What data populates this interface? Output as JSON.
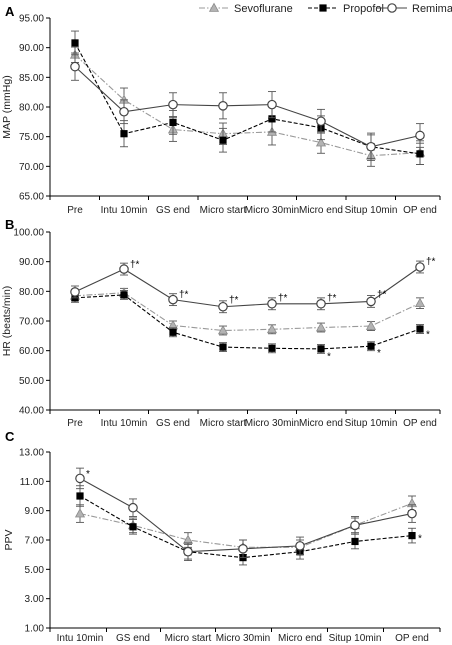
{
  "legend": [
    {
      "name": "Sevoflurane",
      "marker": "triangle",
      "dash": "dashdot",
      "color": "#999999"
    },
    {
      "name": "Propofol",
      "marker": "square",
      "dash": "dashed",
      "color": "#000000"
    },
    {
      "name": "Remimazolam",
      "marker": "circle",
      "dash": "solid",
      "color": "#444444"
    }
  ],
  "chart_data": [
    {
      "type": "line",
      "panel_label": "A",
      "ylabel": "MAP (mmHg)",
      "ylim": [
        65,
        95
      ],
      "yticks": [
        "95.00",
        "90.00",
        "85.00",
        "80.00",
        "75.00",
        "70.00",
        "65.00"
      ],
      "categories": [
        "Pre",
        "Intu 10min",
        "GS end",
        "Micro start",
        "Micro 30min",
        "Micro end",
        "Situp 10min",
        "OP end"
      ],
      "series": [
        {
          "name": "Sevoflurane",
          "values": [
            88.8,
            81.2,
            76.2,
            75.5,
            75.8,
            74.0,
            71.8,
            72.3
          ],
          "err": [
            1.3,
            2.0,
            2.0,
            1.8,
            2.2,
            1.8,
            1.8,
            2.0
          ]
        },
        {
          "name": "Propofol",
          "values": [
            90.8,
            75.5,
            77.4,
            74.4,
            78.0,
            76.5,
            73.3,
            72.1
          ],
          "err": [
            2.0,
            2.2,
            2.0,
            2.0,
            2.2,
            2.0,
            2.0,
            1.8
          ]
        },
        {
          "name": "Remimazolam",
          "values": [
            86.8,
            79.2,
            80.4,
            80.2,
            80.4,
            77.6,
            73.3,
            75.2
          ],
          "err": [
            2.3,
            2.0,
            2.0,
            2.2,
            2.2,
            2.0,
            2.3,
            2.0
          ]
        }
      ],
      "annotations": []
    },
    {
      "type": "line",
      "panel_label": "B",
      "ylabel": "HR (beats/min)",
      "ylim": [
        40,
        100
      ],
      "yticks": [
        "100.00",
        "90.00",
        "80.00",
        "70.00",
        "60.00",
        "50.00",
        "40.00"
      ],
      "categories": [
        "Pre",
        "Intu 10min",
        "GS end",
        "Micro start",
        "Micro 30min",
        "Micro end",
        "Situp 10min",
        "OP end"
      ],
      "series": [
        {
          "name": "Sevoflurane",
          "values": [
            78.5,
            79.5,
            68.5,
            66.8,
            67.2,
            67.8,
            68.3,
            76.0
          ],
          "err": [
            1.5,
            1.5,
            1.5,
            1.5,
            1.5,
            1.5,
            1.5,
            1.8
          ]
        },
        {
          "name": "Propofol",
          "values": [
            77.8,
            78.8,
            66.2,
            61.2,
            60.8,
            60.6,
            61.5,
            67.3
          ],
          "err": [
            1.5,
            1.5,
            1.5,
            1.5,
            1.5,
            1.5,
            1.5,
            1.5
          ]
        },
        {
          "name": "Remimazolam",
          "values": [
            79.8,
            87.5,
            77.2,
            74.8,
            75.8,
            75.8,
            76.6,
            88.2
          ],
          "err": [
            2.0,
            2.0,
            2.0,
            2.0,
            2.0,
            2.0,
            2.0,
            2.0
          ]
        }
      ],
      "annotations": [
        {
          "category": "Intu 10min",
          "value": 89.0,
          "text": "†*"
        },
        {
          "category": "GS end",
          "value": 79.0,
          "text": "†*"
        },
        {
          "category": "Micro start",
          "value": 77.0,
          "text": "†*"
        },
        {
          "category": "Micro 30min",
          "value": 77.8,
          "text": "†*"
        },
        {
          "category": "Micro end",
          "value": 77.8,
          "text": "†*"
        },
        {
          "category": "Situp 10min",
          "value": 79.0,
          "text": "†*"
        },
        {
          "category": "OP end",
          "value": 90.0,
          "text": "†*"
        },
        {
          "category": "Micro end",
          "value": 58.0,
          "text": "*"
        },
        {
          "category": "Situp 10min",
          "value": 59.2,
          "text": "*"
        },
        {
          "category": "OP end",
          "value": 65.5,
          "text": "*"
        }
      ]
    },
    {
      "type": "line",
      "panel_label": "C",
      "ylabel": "PPV",
      "ylim": [
        1,
        13
      ],
      "yticks": [
        "13.00",
        "11.00",
        "9.00",
        "7.00",
        "5.00",
        "3.00",
        "1.00"
      ],
      "categories": [
        "Intu 10min",
        "GS end",
        "Micro start",
        "Micro 30min",
        "Micro end",
        "Situp 10min",
        "OP end"
      ],
      "series": [
        {
          "name": "Sevoflurane",
          "values": [
            8.8,
            8.0,
            7.0,
            6.5,
            6.5,
            8.0,
            9.5
          ],
          "err": [
            0.6,
            0.5,
            0.5,
            0.5,
            0.5,
            0.5,
            0.5
          ]
        },
        {
          "name": "Propofol",
          "values": [
            10.0,
            7.9,
            6.2,
            5.8,
            6.2,
            6.9,
            7.3
          ],
          "err": [
            0.7,
            0.5,
            0.5,
            0.5,
            0.5,
            0.5,
            0.5
          ]
        },
        {
          "name": "Remimazolam",
          "values": [
            11.2,
            9.2,
            6.2,
            6.4,
            6.6,
            8.0,
            8.8
          ],
          "err": [
            0.7,
            0.6,
            0.6,
            0.6,
            0.6,
            0.6,
            0.6
          ]
        }
      ],
      "annotations": [
        {
          "category": "Intu 10min",
          "value": 11.5,
          "text": "*"
        },
        {
          "category": "OP end",
          "value": 7.1,
          "text": "*"
        }
      ]
    }
  ]
}
